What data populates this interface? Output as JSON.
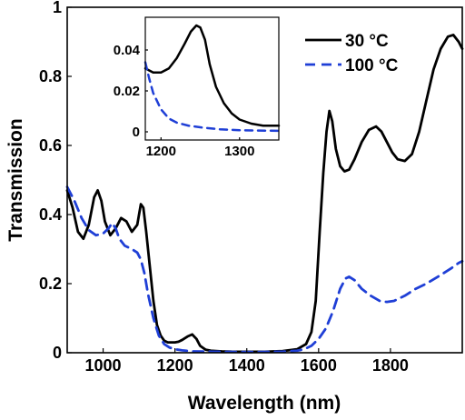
{
  "chart_data": {
    "type": "line",
    "title": "",
    "xlabel": "Wavelength (nm)",
    "ylabel": "Transmission",
    "xlim": [
      900,
      2000
    ],
    "ylim": [
      0,
      1
    ],
    "xticks": [
      1000,
      1200,
      1400,
      1600,
      1800
    ],
    "yticks": [
      0,
      0.2,
      0.4,
      0.6,
      0.8,
      1
    ],
    "ytick_labels": [
      "0",
      "0.2",
      "0.4",
      "0.6",
      "0.8",
      "1"
    ],
    "grid": false,
    "legend_position": "top-right",
    "series": [
      {
        "name": "30 °C",
        "color": "#000000",
        "dash": "solid",
        "points": [
          [
            900,
            0.47
          ],
          [
            915,
            0.42
          ],
          [
            930,
            0.35
          ],
          [
            945,
            0.33
          ],
          [
            960,
            0.37
          ],
          [
            975,
            0.45
          ],
          [
            985,
            0.47
          ],
          [
            995,
            0.44
          ],
          [
            1005,
            0.38
          ],
          [
            1020,
            0.34
          ],
          [
            1035,
            0.36
          ],
          [
            1050,
            0.39
          ],
          [
            1065,
            0.38
          ],
          [
            1080,
            0.35
          ],
          [
            1095,
            0.37
          ],
          [
            1105,
            0.43
          ],
          [
            1112,
            0.42
          ],
          [
            1120,
            0.35
          ],
          [
            1130,
            0.25
          ],
          [
            1140,
            0.15
          ],
          [
            1150,
            0.08
          ],
          [
            1160,
            0.05
          ],
          [
            1170,
            0.035
          ],
          [
            1180,
            0.03
          ],
          [
            1190,
            0.03
          ],
          [
            1200,
            0.03
          ],
          [
            1210,
            0.032
          ],
          [
            1220,
            0.037
          ],
          [
            1235,
            0.047
          ],
          [
            1248,
            0.053
          ],
          [
            1260,
            0.04
          ],
          [
            1270,
            0.02
          ],
          [
            1285,
            0.009
          ],
          [
            1300,
            0.006
          ],
          [
            1330,
            0.004
          ],
          [
            1360,
            0.003
          ],
          [
            1400,
            0.003
          ],
          [
            1450,
            0.003
          ],
          [
            1500,
            0.005
          ],
          [
            1540,
            0.01
          ],
          [
            1565,
            0.025
          ],
          [
            1580,
            0.06
          ],
          [
            1592,
            0.15
          ],
          [
            1603,
            0.35
          ],
          [
            1613,
            0.52
          ],
          [
            1622,
            0.64
          ],
          [
            1630,
            0.7
          ],
          [
            1638,
            0.67
          ],
          [
            1648,
            0.59
          ],
          [
            1660,
            0.54
          ],
          [
            1672,
            0.525
          ],
          [
            1685,
            0.53
          ],
          [
            1700,
            0.56
          ],
          [
            1720,
            0.61
          ],
          [
            1740,
            0.645
          ],
          [
            1760,
            0.655
          ],
          [
            1775,
            0.64
          ],
          [
            1790,
            0.61
          ],
          [
            1805,
            0.58
          ],
          [
            1820,
            0.56
          ],
          [
            1840,
            0.555
          ],
          [
            1860,
            0.575
          ],
          [
            1880,
            0.64
          ],
          [
            1900,
            0.73
          ],
          [
            1920,
            0.82
          ],
          [
            1940,
            0.88
          ],
          [
            1960,
            0.915
          ],
          [
            1975,
            0.92
          ],
          [
            1990,
            0.9
          ],
          [
            2000,
            0.88
          ]
        ]
      },
      {
        "name": "100 °C",
        "color": "#1f3fd6",
        "dash": "dashed",
        "points": [
          [
            900,
            0.48
          ],
          [
            920,
            0.44
          ],
          [
            940,
            0.39
          ],
          [
            960,
            0.355
          ],
          [
            980,
            0.34
          ],
          [
            1000,
            0.345
          ],
          [
            1015,
            0.36
          ],
          [
            1025,
            0.375
          ],
          [
            1035,
            0.36
          ],
          [
            1045,
            0.33
          ],
          [
            1060,
            0.31
          ],
          [
            1080,
            0.3
          ],
          [
            1095,
            0.29
          ],
          [
            1105,
            0.27
          ],
          [
            1115,
            0.23
          ],
          [
            1125,
            0.17
          ],
          [
            1140,
            0.1
          ],
          [
            1155,
            0.05
          ],
          [
            1170,
            0.025
          ],
          [
            1185,
            0.015
          ],
          [
            1200,
            0.01
          ],
          [
            1220,
            0.007
          ],
          [
            1250,
            0.004
          ],
          [
            1300,
            0.003
          ],
          [
            1400,
            0.002
          ],
          [
            1500,
            0.003
          ],
          [
            1540,
            0.006
          ],
          [
            1560,
            0.01
          ],
          [
            1580,
            0.02
          ],
          [
            1600,
            0.04
          ],
          [
            1620,
            0.07
          ],
          [
            1640,
            0.12
          ],
          [
            1660,
            0.185
          ],
          [
            1675,
            0.215
          ],
          [
            1685,
            0.22
          ],
          [
            1700,
            0.21
          ],
          [
            1720,
            0.185
          ],
          [
            1745,
            0.165
          ],
          [
            1770,
            0.15
          ],
          [
            1790,
            0.147
          ],
          [
            1810,
            0.15
          ],
          [
            1840,
            0.165
          ],
          [
            1870,
            0.185
          ],
          [
            1900,
            0.2
          ],
          [
            1940,
            0.225
          ],
          [
            1970,
            0.245
          ],
          [
            1990,
            0.26
          ],
          [
            2000,
            0.265
          ]
        ]
      }
    ],
    "inset": {
      "xlim": [
        1180,
        1350
      ],
      "ylim": [
        -0.004,
        0.056
      ],
      "xticks": [
        1200,
        1300
      ],
      "yticks": [
        0,
        0.02,
        0.04
      ],
      "ytick_labels": [
        "0",
        "0.02",
        "0.04"
      ],
      "series": [
        {
          "name": "30 °C",
          "color": "#000000",
          "dash": "solid",
          "points": [
            [
              1180,
              0.031
            ],
            [
              1190,
              0.029
            ],
            [
              1200,
              0.029
            ],
            [
              1210,
              0.031
            ],
            [
              1220,
              0.036
            ],
            [
              1230,
              0.043
            ],
            [
              1238,
              0.049
            ],
            [
              1245,
              0.052
            ],
            [
              1250,
              0.051
            ],
            [
              1256,
              0.045
            ],
            [
              1262,
              0.033
            ],
            [
              1270,
              0.022
            ],
            [
              1280,
              0.014
            ],
            [
              1290,
              0.009
            ],
            [
              1300,
              0.006
            ],
            [
              1315,
              0.004
            ],
            [
              1330,
              0.003
            ],
            [
              1350,
              0.003
            ]
          ]
        },
        {
          "name": "100 °C",
          "color": "#1f3fd6",
          "dash": "dashed",
          "points": [
            [
              1180,
              0.034
            ],
            [
              1185,
              0.026
            ],
            [
              1190,
              0.019
            ],
            [
              1200,
              0.011
            ],
            [
              1210,
              0.0065
            ],
            [
              1220,
              0.0045
            ],
            [
              1235,
              0.003
            ],
            [
              1250,
              0.0022
            ],
            [
              1275,
              0.0012
            ],
            [
              1300,
              0.0008
            ],
            [
              1325,
              0.0006
            ],
            [
              1350,
              0.0005
            ]
          ]
        }
      ]
    }
  }
}
